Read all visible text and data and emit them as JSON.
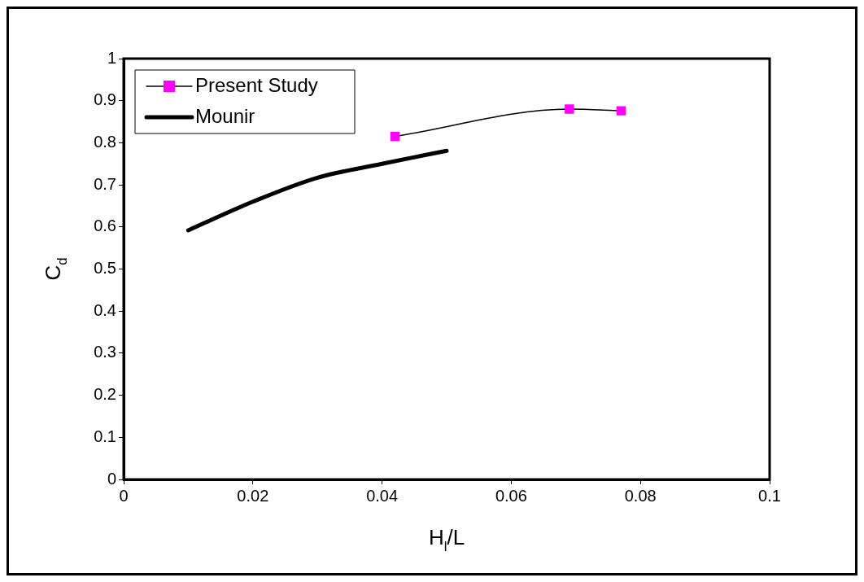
{
  "chart_data": {
    "type": "line",
    "xlabel": "H$_{l}$/L",
    "ylabel": "C$_{d}$",
    "xlim": [
      0,
      0.1
    ],
    "xticks": [
      0,
      0.02,
      0.04,
      0.06,
      0.08,
      0.1
    ],
    "ylim": [
      0,
      1
    ],
    "yticks": [
      0,
      0.1,
      0.2,
      0.3,
      0.4,
      0.5,
      0.6,
      0.7,
      0.8,
      0.9,
      1
    ],
    "grid": false,
    "legend": "top left",
    "series": [
      {
        "name": "Present Study",
        "color": "#ff00ff",
        "marker": "square",
        "x": [
          0.042,
          0.069,
          0.077
        ],
        "values": [
          0.815,
          0.88,
          0.876
        ]
      },
      {
        "name": "Mounir",
        "color": "#000000",
        "marker": "none",
        "x": [
          0.01,
          0.02,
          0.03,
          0.04,
          0.05
        ],
        "values": [
          0.592,
          0.66,
          0.717,
          0.75,
          0.781
        ]
      }
    ]
  }
}
